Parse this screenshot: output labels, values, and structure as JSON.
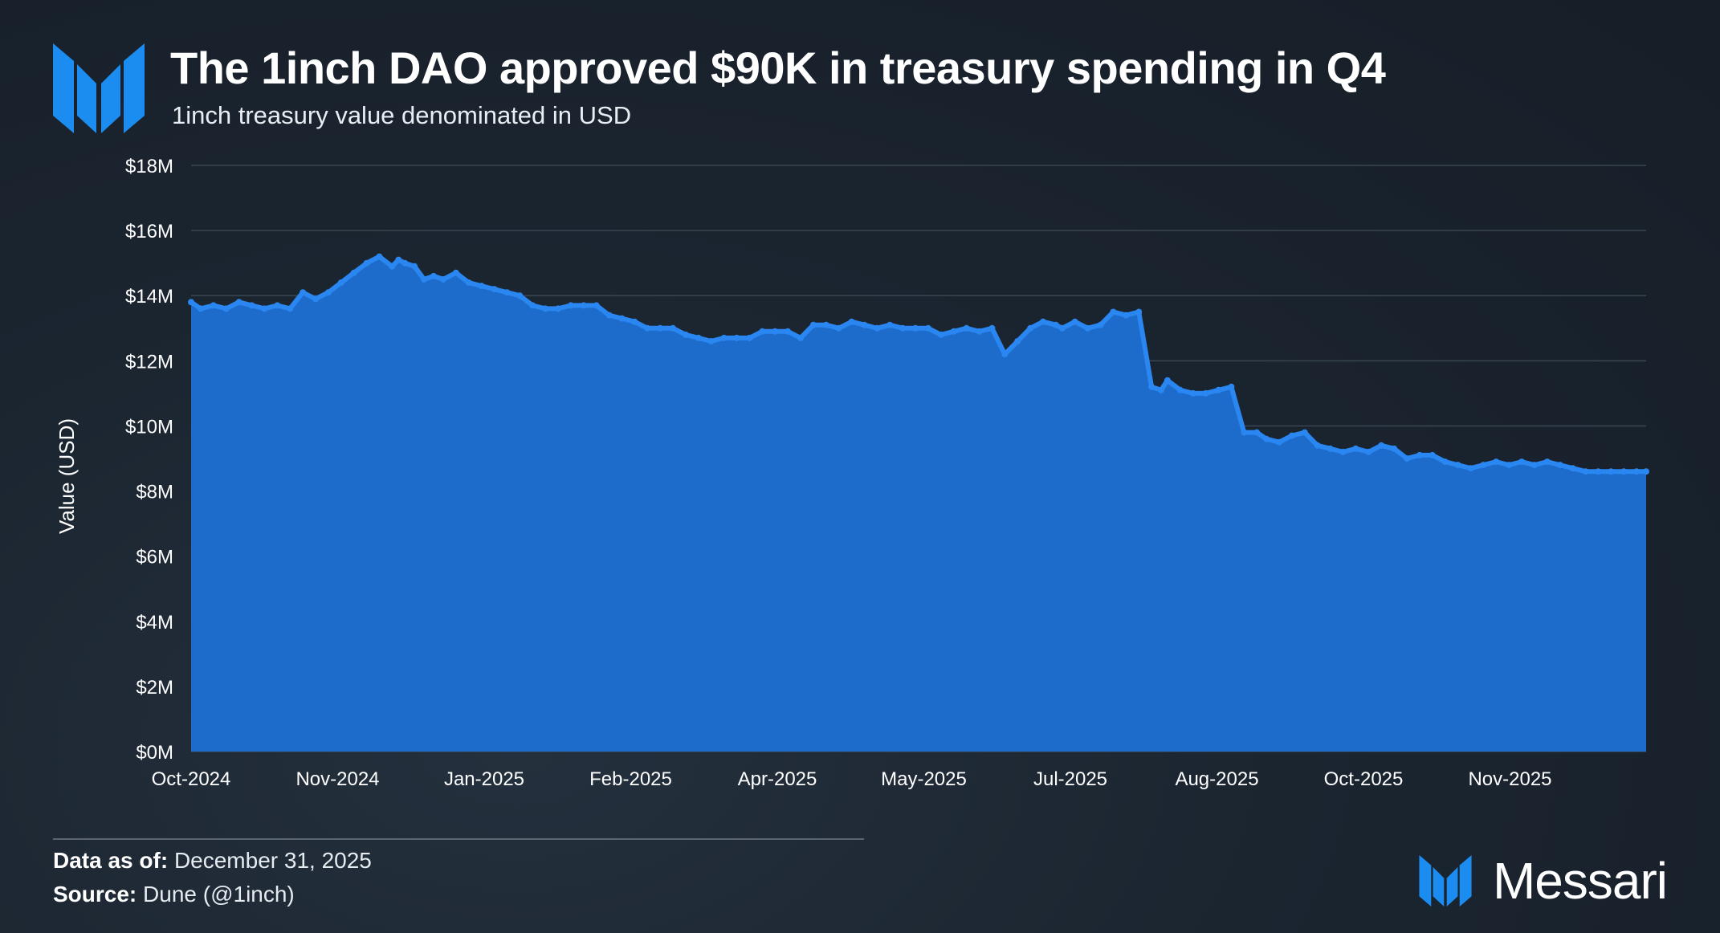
{
  "header": {
    "logo_icon": "messari-m-logo-icon",
    "title": "The 1inch DAO approved $90K in treasury spending in Q4",
    "subtitle": "1inch treasury value denominated in USD"
  },
  "footer": {
    "data_as_of_label": "Data as of:",
    "data_as_of_value": "December 31, 2025",
    "source_label": "Source:",
    "source_value": "Dune (@1inch)",
    "brand_name": "Messari",
    "brand_icon": "messari-m-logo-icon"
  },
  "colors": {
    "area_fill": "#1d6ccc",
    "line": "#2a86f0",
    "grid": "#3a4552",
    "logo_blue": "#1b8cf0"
  },
  "chart_data": {
    "type": "area",
    "title": "The 1inch DAO approved $90K in treasury spending in Q4",
    "subtitle": "1inch treasury value denominated in USD",
    "xlabel": "",
    "ylabel": "Value (USD)",
    "ylim": [
      0,
      18
    ],
    "y_unit": "M USD",
    "y_ticks": [
      "$0M",
      "$2M",
      "$4M",
      "$6M",
      "$8M",
      "$10M",
      "$12M",
      "$14M",
      "$16M",
      "$18M"
    ],
    "x_ticks": [
      "Oct-2024",
      "Nov-2024",
      "Jan-2025",
      "Feb-2025",
      "Apr-2025",
      "May-2025",
      "Jul-2025",
      "Aug-2025",
      "Oct-2025",
      "Nov-2025"
    ],
    "grid": true,
    "legend": "none",
    "series": [
      {
        "x": [
          "2024-10-01",
          "2024-10-04",
          "2024-10-08",
          "2024-10-12",
          "2024-10-16",
          "2024-10-20",
          "2024-10-24",
          "2024-10-28",
          "2024-11-01",
          "2024-11-05",
          "2024-11-09",
          "2024-11-13",
          "2024-11-17",
          "2024-11-21",
          "2024-11-25",
          "2024-11-29",
          "2024-12-03",
          "2024-12-05",
          "2024-12-07",
          "2024-12-10",
          "2024-12-13",
          "2024-12-16",
          "2024-12-19",
          "2024-12-23",
          "2024-12-27",
          "2024-12-31",
          "2025-01-04",
          "2025-01-08",
          "2025-01-12",
          "2025-01-16",
          "2025-01-20",
          "2025-01-24",
          "2025-01-28",
          "2025-02-01",
          "2025-02-05",
          "2025-02-09",
          "2025-02-13",
          "2025-02-17",
          "2025-02-21",
          "2025-02-25",
          "2025-03-01",
          "2025-03-05",
          "2025-03-09",
          "2025-03-13",
          "2025-03-17",
          "2025-03-21",
          "2025-03-25",
          "2025-03-29",
          "2025-04-02",
          "2025-04-06",
          "2025-04-10",
          "2025-04-14",
          "2025-04-18",
          "2025-04-22",
          "2025-04-26",
          "2025-04-30",
          "2025-05-04",
          "2025-05-08",
          "2025-05-12",
          "2025-05-16",
          "2025-05-20",
          "2025-05-24",
          "2025-05-28",
          "2025-06-01",
          "2025-06-05",
          "2025-06-09",
          "2025-06-13",
          "2025-06-17",
          "2025-06-21",
          "2025-06-25",
          "2025-06-29",
          "2025-07-01",
          "2025-07-05",
          "2025-07-09",
          "2025-07-13",
          "2025-07-17",
          "2025-07-21",
          "2025-07-25",
          "2025-07-29",
          "2025-08-01",
          "2025-08-03",
          "2025-08-07",
          "2025-08-11",
          "2025-08-15",
          "2025-08-19",
          "2025-08-23",
          "2025-08-27",
          "2025-08-31",
          "2025-09-03",
          "2025-09-07",
          "2025-09-11",
          "2025-09-15",
          "2025-09-19",
          "2025-09-23",
          "2025-09-27",
          "2025-10-01",
          "2025-10-05",
          "2025-10-09",
          "2025-10-13",
          "2025-10-17",
          "2025-10-21",
          "2025-10-25",
          "2025-10-29",
          "2025-11-02",
          "2025-11-06",
          "2025-11-10",
          "2025-11-14",
          "2025-11-18",
          "2025-11-22",
          "2025-11-26",
          "2025-11-30",
          "2025-12-04",
          "2025-12-08",
          "2025-12-12",
          "2025-12-16",
          "2025-12-20",
          "2025-12-24",
          "2025-12-28",
          "2025-12-31"
        ],
        "y": [
          13.8,
          13.6,
          13.7,
          13.6,
          13.8,
          13.7,
          13.6,
          13.7,
          13.6,
          14.1,
          13.9,
          14.1,
          14.4,
          14.7,
          15.0,
          15.2,
          14.9,
          15.1,
          15.0,
          14.9,
          14.5,
          14.6,
          14.5,
          14.7,
          14.4,
          14.3,
          14.2,
          14.1,
          14.0,
          13.7,
          13.6,
          13.6,
          13.7,
          13.7,
          13.7,
          13.4,
          13.3,
          13.2,
          13.0,
          13.0,
          13.0,
          12.8,
          12.7,
          12.6,
          12.7,
          12.7,
          12.7,
          12.9,
          12.9,
          12.9,
          12.7,
          13.1,
          13.1,
          13.0,
          13.2,
          13.1,
          13.0,
          13.1,
          13.0,
          13.0,
          13.0,
          12.8,
          12.9,
          13.0,
          12.9,
          13.0,
          12.2,
          12.6,
          13.0,
          13.2,
          13.1,
          13.0,
          13.2,
          13.0,
          13.1,
          13.5,
          13.4,
          13.5,
          11.2,
          11.1,
          11.4,
          11.1,
          11.0,
          11.0,
          11.1,
          11.2,
          9.8,
          9.8,
          9.6,
          9.5,
          9.7,
          9.8,
          9.4,
          9.3,
          9.2,
          9.3,
          9.2,
          9.4,
          9.3,
          9.0,
          9.1,
          9.1,
          8.9,
          8.8,
          8.7,
          8.8,
          8.9,
          8.8,
          8.9,
          8.8,
          8.9,
          8.8,
          8.7,
          8.6,
          8.6,
          8.6,
          8.6,
          8.6,
          8.6
        ]
      }
    ]
  }
}
